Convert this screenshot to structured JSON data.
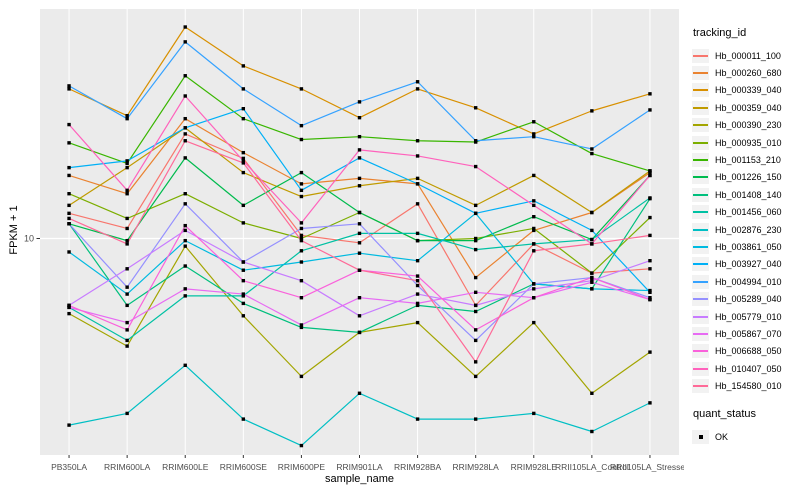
{
  "figure": {
    "y_axis_label": "FPKM + 1",
    "x_axis_label": "sample_name"
  },
  "legend": {
    "tracking_title": "tracking_id",
    "quant_title": "quant_status",
    "quant_items": [
      {
        "label": "OK",
        "marker": "black-square"
      }
    ]
  },
  "chart_data": {
    "type": "line",
    "x_categories": [
      "PB350LA",
      "RRIM600LA",
      "RRIM600LE",
      "RRIM600SE",
      "RRIM600PE",
      "RRIM901LA",
      "RRIM928BA",
      "RRIM928LA",
      "RRIM928LE",
      "RRII105LA_Control",
      "RRII105LA_Stressed"
    ],
    "y_scale": "log10",
    "ylim": [
      1.28,
      88.4
    ],
    "y_major_breaks": [
      10
    ],
    "grid": "major-only",
    "legend_position": "right",
    "panel_bg": "#EBEBEB",
    "grid_color": "#FFFFFF",
    "axis_text_color": "#4D4D4D",
    "tick_color": "#333333",
    "marker": "square",
    "marker_color": "#000000",
    "series": [
      {
        "name": "Hb_000011_100",
        "color": "#F8766D",
        "values": [
          12.7,
          11.0,
          27.0,
          21.4,
          10.3,
          9.6,
          13.9,
          5.3,
          9.5,
          7.2,
          7.5
        ]
      },
      {
        "name": "Hb_000260_680",
        "color": "#EA8331",
        "values": [
          18.2,
          15.3,
          31.2,
          22.6,
          16.8,
          17.7,
          16.8,
          6.9,
          10.8,
          12.8,
          18.7
        ]
      },
      {
        "name": "Hb_000339_040",
        "color": "#D89000",
        "values": [
          41.4,
          32.1,
          74.5,
          51.5,
          41.4,
          31.5,
          41.4,
          34.6,
          27.0,
          33.6,
          39.5
        ]
      },
      {
        "name": "Hb_000359_040",
        "color": "#C09B00",
        "values": [
          13.7,
          19.6,
          28.6,
          18.7,
          14.9,
          16.5,
          17.7,
          13.7,
          18.2,
          12.8,
          19.0
        ]
      },
      {
        "name": "Hb_000390_230",
        "color": "#A3A500",
        "values": [
          4.9,
          3.6,
          9.3,
          4.8,
          2.7,
          4.1,
          4.5,
          2.7,
          4.5,
          2.3,
          3.4
        ]
      },
      {
        "name": "Hb_000935_010",
        "color": "#7CAE00",
        "values": [
          15.3,
          12.1,
          15.3,
          11.6,
          10.0,
          12.8,
          9.8,
          10.0,
          11.0,
          7.2,
          12.2
        ]
      },
      {
        "name": "Hb_001153_210",
        "color": "#39B600",
        "values": [
          24.8,
          20.4,
          46.9,
          31.2,
          25.6,
          26.3,
          25.3,
          25.0,
          30.3,
          22.4,
          19.0
        ]
      },
      {
        "name": "Hb_001226_150",
        "color": "#00BB4E",
        "values": [
          11.5,
          9.8,
          21.5,
          13.7,
          18.7,
          12.8,
          9.8,
          9.8,
          12.3,
          9.9,
          18.2
        ]
      },
      {
        "name": "Hb_001408_140",
        "color": "#00BF7D",
        "values": [
          11.5,
          5.3,
          7.7,
          5.4,
          4.3,
          4.1,
          5.3,
          5.0,
          6.5,
          6.2,
          14.6
        ]
      },
      {
        "name": "Hb_001456_060",
        "color": "#00C1A3",
        "values": [
          5.2,
          3.8,
          5.8,
          5.8,
          8.9,
          10.5,
          10.5,
          9.0,
          9.5,
          9.9,
          14.7
        ]
      },
      {
        "name": "Hb_002876_230",
        "color": "#00BFC4",
        "values": [
          1.7,
          1.9,
          3.0,
          1.8,
          1.4,
          2.3,
          1.8,
          1.8,
          1.9,
          1.6,
          2.1
        ]
      },
      {
        "name": "Hb_003861_050",
        "color": "#00BAE0",
        "values": [
          8.8,
          5.9,
          9.8,
          7.4,
          8.0,
          8.7,
          8.1,
          12.7,
          6.5,
          6.2,
          6.1
        ]
      },
      {
        "name": "Hb_003927_040",
        "color": "#00B0F6",
        "values": [
          19.6,
          20.9,
          28.6,
          34.3,
          15.8,
          21.5,
          16.8,
          12.7,
          14.3,
          10.8,
          6.0
        ]
      },
      {
        "name": "Hb_004994_010",
        "color": "#35A2FF",
        "values": [
          42.6,
          31.2,
          64.7,
          41.4,
          29.2,
          36.6,
          44.3,
          25.3,
          26.3,
          23.4,
          33.9
        ]
      },
      {
        "name": "Hb_005289_040",
        "color": "#9590FF",
        "values": [
          11.5,
          6.3,
          13.9,
          8.0,
          11.0,
          11.5,
          6.4,
          3.8,
          6.5,
          6.9,
          5.7
        ]
      },
      {
        "name": "Hb_005779_010",
        "color": "#C77CFF",
        "values": [
          5.3,
          7.5,
          10.8,
          8.0,
          6.7,
          4.8,
          5.9,
          5.3,
          6.2,
          6.7,
          8.1
        ]
      },
      {
        "name": "Hb_005867_070",
        "color": "#E76BF3",
        "values": [
          5.2,
          4.5,
          6.2,
          5.9,
          4.4,
          5.7,
          5.4,
          6.0,
          5.7,
          6.6,
          5.6
        ]
      },
      {
        "name": "Hb_006688_050",
        "color": "#FA62DB",
        "values": [
          5.3,
          4.2,
          11.3,
          6.7,
          5.7,
          7.4,
          7.0,
          4.2,
          5.7,
          6.9,
          5.6
        ]
      },
      {
        "name": "Hb_010407_050",
        "color": "#FF62BC",
        "values": [
          29.5,
          15.8,
          38.7,
          20.9,
          11.6,
          23.2,
          21.9,
          19.8,
          13.7,
          9.5,
          18.2
        ]
      },
      {
        "name": "Hb_154580_010",
        "color": "#FF6A98",
        "values": [
          12.1,
          9.5,
          25.3,
          20.5,
          9.8,
          7.4,
          6.7,
          3.1,
          8.9,
          9.5,
          10.3
        ]
      }
    ]
  }
}
